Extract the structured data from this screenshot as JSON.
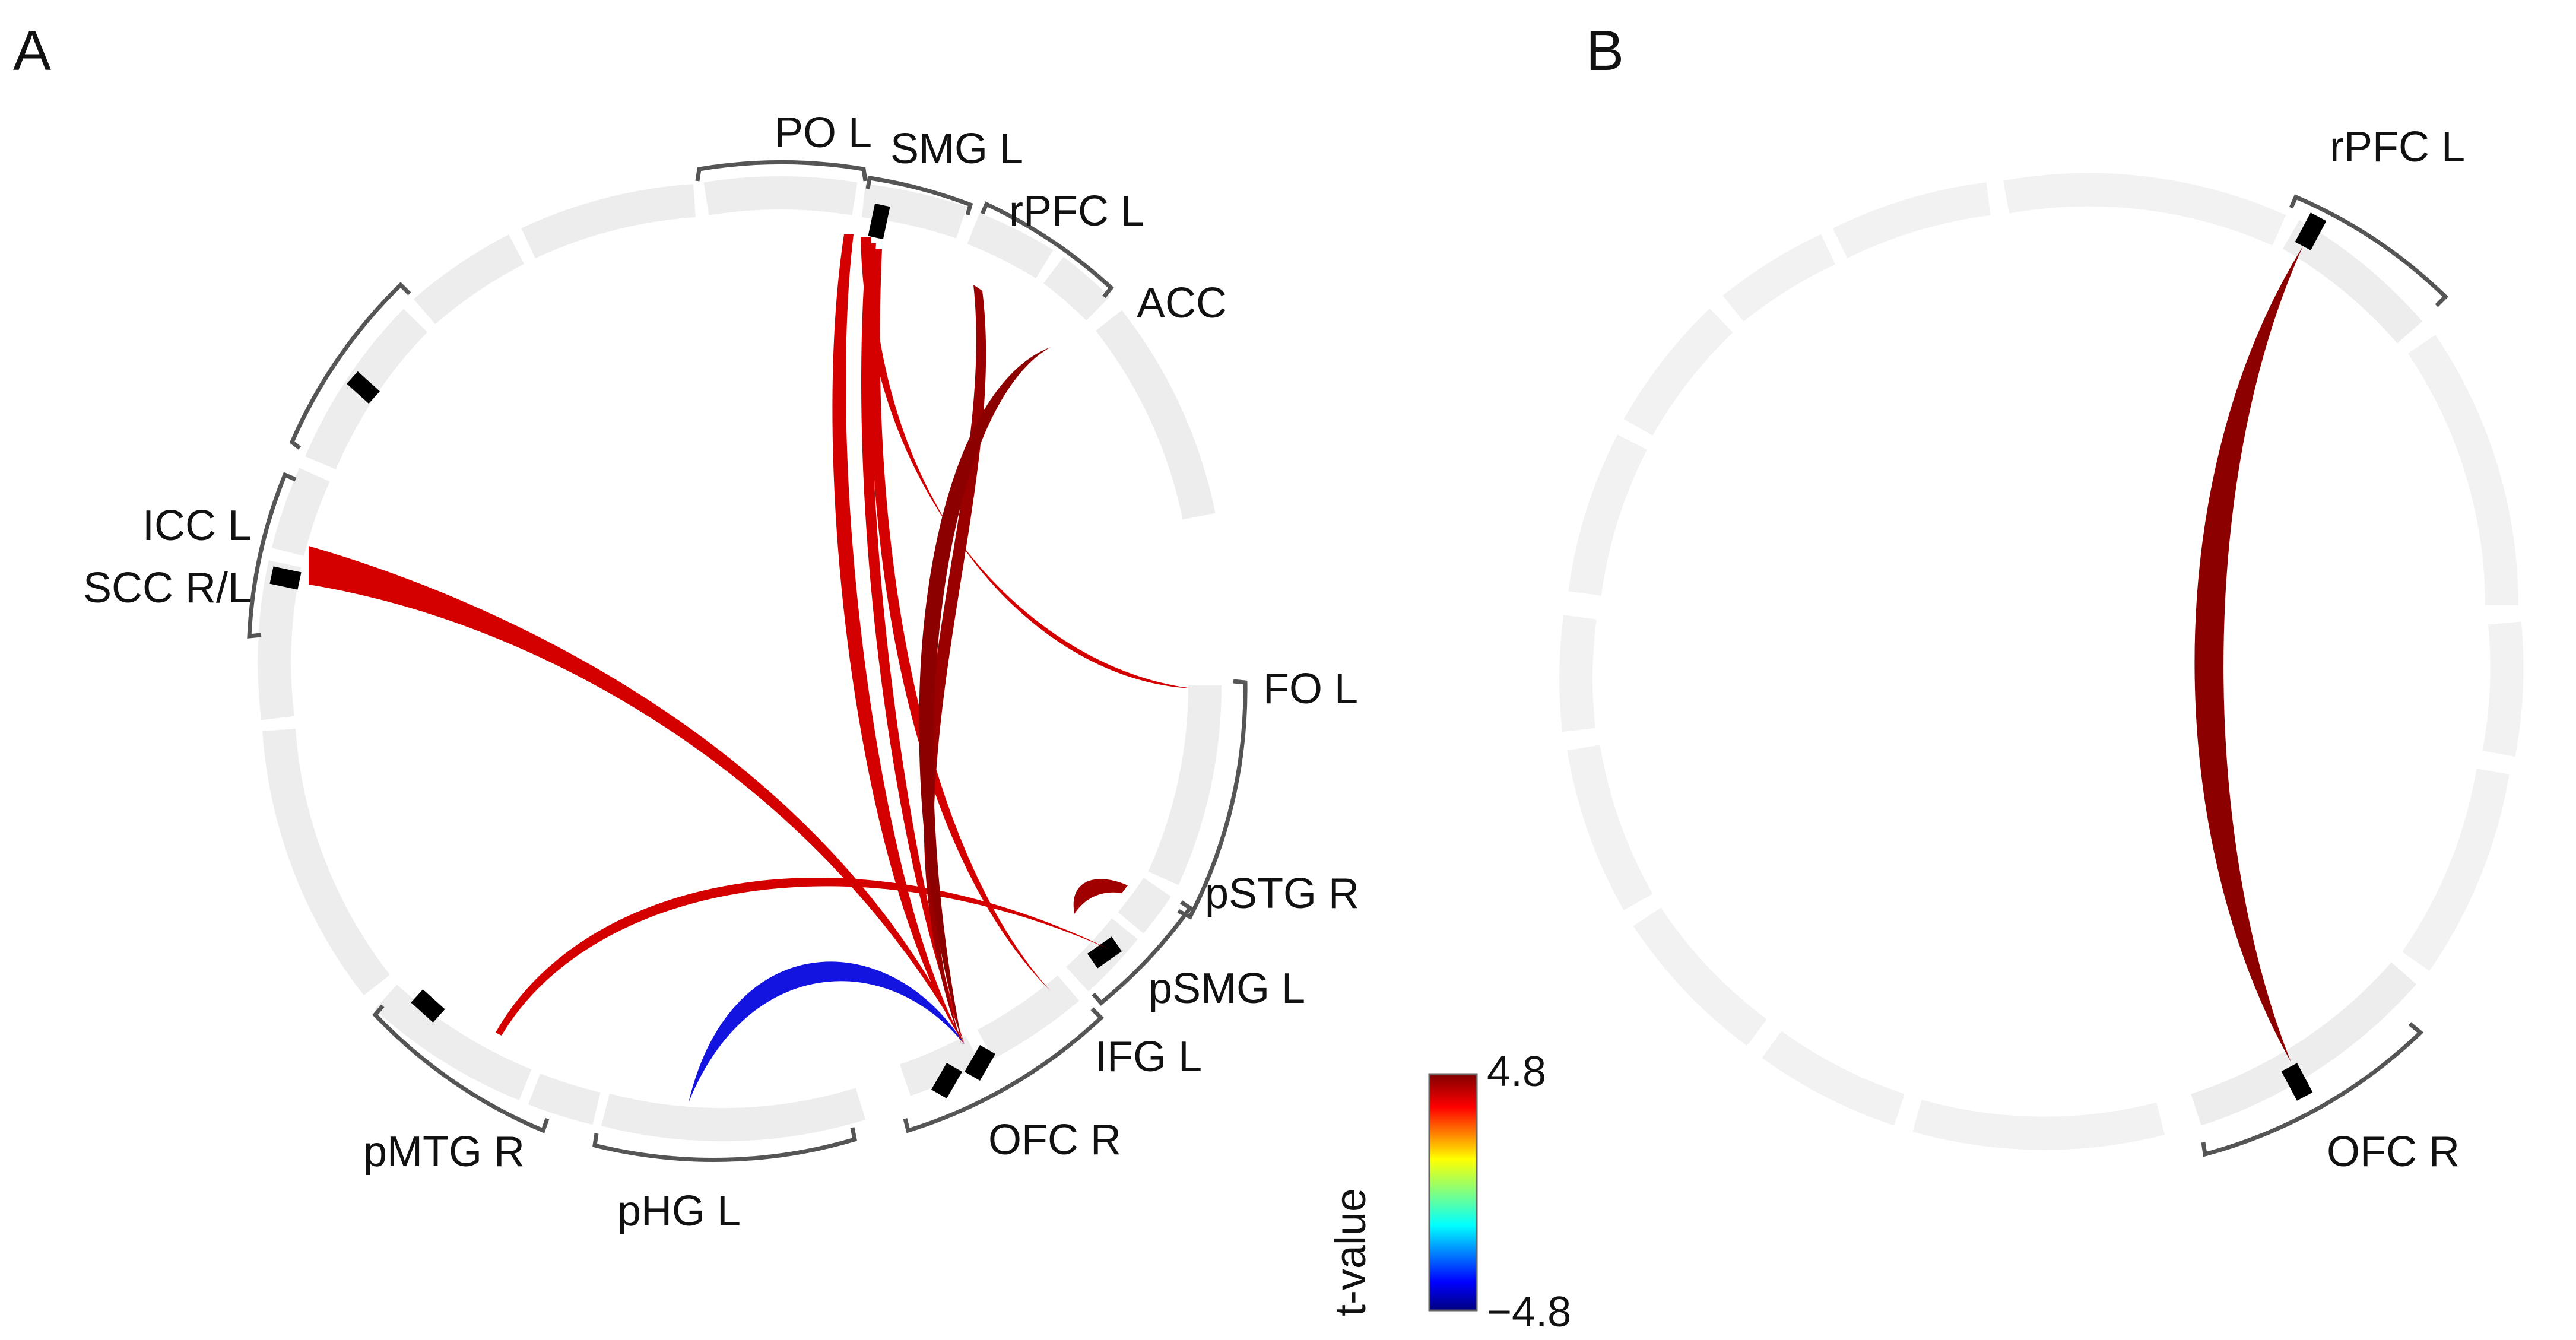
{
  "panel_a": {
    "letter": "A",
    "labels": {
      "po_l": "PO L",
      "smg_l": "SMG L",
      "rpfc_l": "rPFC L",
      "acc": "ACC",
      "icc_l": "ICC L",
      "scc_rl": "SCC R/L",
      "fo_l": "FO L",
      "pstg_r": "pSTG R",
      "psmg_l": "pSMG L",
      "ifg_l": "IFG L",
      "ofc_r": "OFC R",
      "pmtg_r": "pMTG R",
      "phg_l": "pHG L"
    }
  },
  "panel_b": {
    "letter": "B",
    "labels": {
      "rpfc_l": "rPFC L",
      "ofc_r": "OFC R"
    }
  },
  "colorbar": {
    "title": "t-value",
    "max_label": "4.8",
    "min_label": "−4.8",
    "max": 4.8,
    "min": -4.8
  },
  "colors": {
    "positive_red": "#d40000",
    "strong_darkred": "#8c0000",
    "negative_blue": "#1414e0",
    "ring": "#ededed"
  },
  "connections_a": [
    {
      "from": "SMG L",
      "to": "OFC R",
      "color": "red"
    },
    {
      "from": "SMG L",
      "to": "OFC R",
      "color": "red"
    },
    {
      "from": "SMG L",
      "to": "IFG L",
      "color": "red"
    },
    {
      "from": "SMG L",
      "to": "FO L",
      "color": "red"
    },
    {
      "from": "rPFC L",
      "to": "OFC R",
      "color": "dark red"
    },
    {
      "from": "ACC",
      "to": "OFC R",
      "color": "dark red"
    },
    {
      "from": "SCC R/L",
      "to": "OFC R",
      "color": "red"
    },
    {
      "from": "pMTG R",
      "to": "pSMG L",
      "color": "red"
    },
    {
      "from": "pSTG R",
      "to": "pSTG R",
      "color": "dark red"
    },
    {
      "from": "pHG L",
      "to": "OFC R",
      "color": "blue"
    }
  ],
  "connections_b": [
    {
      "from": "rPFC L",
      "to": "OFC R",
      "color": "dark red"
    }
  ]
}
